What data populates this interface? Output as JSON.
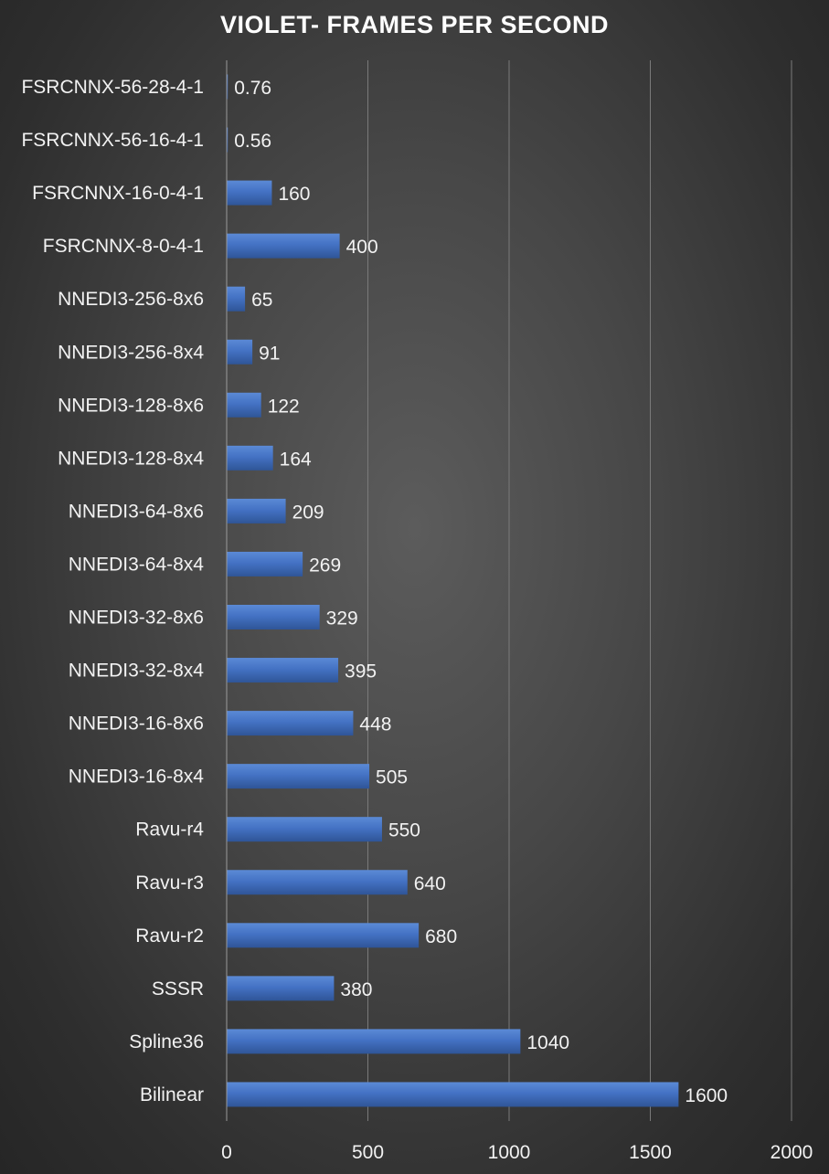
{
  "chart_data": {
    "type": "bar",
    "orientation": "horizontal",
    "title": "VIOLET- FRAMES PER SECOND",
    "xlabel": "",
    "ylabel": "",
    "categories": [
      "FSRCNNX-56-28-4-1",
      "FSRCNNX-56-16-4-1",
      "FSRCNNX-16-0-4-1",
      "FSRCNNX-8-0-4-1",
      "NNEDI3-256-8x6",
      "NNEDI3-256-8x4",
      "NNEDI3-128-8x6",
      "NNEDI3-128-8x4",
      "NNEDI3-64-8x6",
      "NNEDI3-64-8x4",
      "NNEDI3-32-8x6",
      "NNEDI3-32-8x4",
      "NNEDI3-16-8x6",
      "NNEDI3-16-8x4",
      "Ravu-r4",
      "Ravu-r3",
      "Ravu-r2",
      "SSSR",
      "Spline36",
      "Bilinear"
    ],
    "values": [
      0.76,
      0.56,
      160,
      400,
      65,
      91,
      122,
      164,
      209,
      269,
      329,
      395,
      448,
      505,
      550,
      640,
      680,
      380,
      1040,
      1600
    ],
    "value_labels": [
      "0.76",
      "0.56",
      "160",
      "400",
      "65",
      "91",
      "122",
      "164",
      "209",
      "269",
      "329",
      "395",
      "448",
      "505",
      "550",
      "640",
      "680",
      "380",
      "1040",
      "1600"
    ],
    "xlim": [
      0,
      2000
    ],
    "xticks": [
      0,
      500,
      1000,
      1500,
      2000
    ],
    "xtick_labels": [
      "0",
      "500",
      "1000",
      "1500",
      "2000"
    ],
    "grid": "vertical",
    "legend": "none",
    "bar_color": "#4472c4"
  }
}
